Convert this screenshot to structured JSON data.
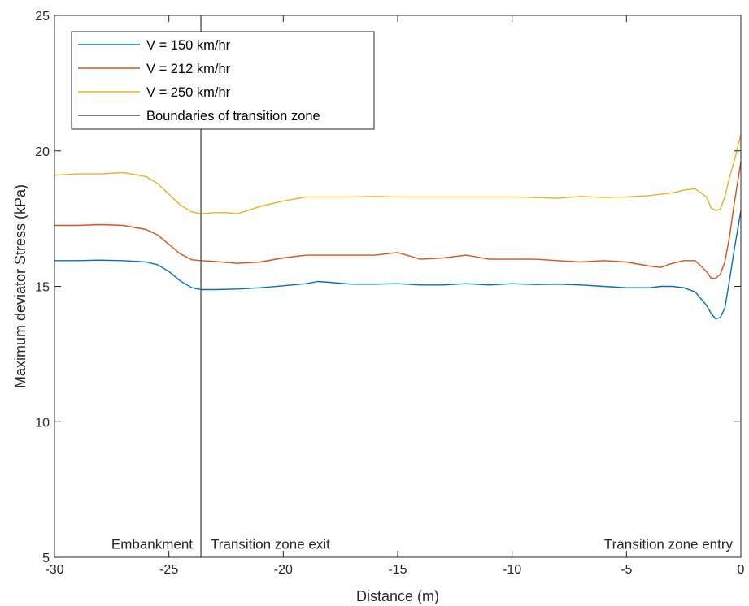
{
  "chart_data": {
    "type": "line",
    "title": "",
    "xlabel": "Distance (m)",
    "ylabel": "Maximum deviator Stress (kPa)",
    "xlim": [
      -30,
      0
    ],
    "ylim": [
      5,
      25
    ],
    "xticks": [
      -30,
      -25,
      -20,
      -15,
      -10,
      -5,
      0
    ],
    "yticks": [
      5,
      10,
      15,
      20,
      25
    ],
    "grid": false,
    "legend_position": "top-left",
    "series": [
      {
        "name": "V = 150 km/hr",
        "color": "#0072BD",
        "x": [
          -30,
          -29,
          -28,
          -27,
          -26,
          -25.5,
          -25,
          -24.5,
          -24,
          -23.6,
          -23,
          -22,
          -21,
          -20,
          -19,
          -18.5,
          -18,
          -17,
          -16,
          -15,
          -14,
          -13,
          -12,
          -11,
          -10,
          -9,
          -8,
          -7,
          -6,
          -5,
          -4,
          -3.5,
          -3,
          -2.5,
          -2,
          -1.5,
          -1.3,
          -1.1,
          -0.9,
          -0.7,
          -0.5,
          -0.3,
          0
        ],
        "y": [
          15.95,
          15.95,
          15.97,
          15.95,
          15.9,
          15.8,
          15.55,
          15.2,
          14.95,
          14.88,
          14.88,
          14.9,
          14.95,
          15.02,
          15.1,
          15.18,
          15.15,
          15.08,
          15.08,
          15.1,
          15.05,
          15.05,
          15.1,
          15.05,
          15.1,
          15.07,
          15.08,
          15.05,
          15.0,
          14.95,
          14.95,
          15.0,
          15.0,
          14.95,
          14.8,
          14.3,
          14.0,
          13.8,
          13.85,
          14.2,
          15.2,
          16.3,
          17.8
        ]
      },
      {
        "name": "V = 212 km/hr",
        "color": "#D95319",
        "x": [
          -30,
          -29,
          -28,
          -27,
          -26,
          -25.5,
          -25,
          -24.5,
          -24,
          -23.6,
          -23,
          -22,
          -21,
          -20,
          -19,
          -18,
          -17,
          -16,
          -15,
          -14,
          -13,
          -12,
          -11,
          -10,
          -9,
          -8,
          -7,
          -6,
          -5,
          -4,
          -3.5,
          -3,
          -2.5,
          -2,
          -1.5,
          -1.3,
          -1.1,
          -0.9,
          -0.7,
          -0.5,
          -0.3,
          0
        ],
        "y": [
          17.25,
          17.25,
          17.28,
          17.25,
          17.1,
          16.9,
          16.55,
          16.2,
          15.98,
          15.95,
          15.92,
          15.85,
          15.9,
          16.05,
          16.15,
          16.15,
          16.15,
          16.15,
          16.25,
          16.0,
          16.05,
          16.15,
          16.0,
          16.0,
          16.0,
          15.95,
          15.9,
          15.95,
          15.9,
          15.75,
          15.7,
          15.85,
          15.95,
          15.95,
          15.55,
          15.3,
          15.3,
          15.45,
          15.9,
          16.8,
          18.0,
          19.6
        ]
      },
      {
        "name": "V = 250 km/hr",
        "color": "#EDB120",
        "x": [
          -30,
          -29,
          -28,
          -27,
          -26,
          -25.5,
          -25,
          -24.5,
          -24,
          -23.6,
          -23,
          -22.5,
          -22,
          -21,
          -20,
          -19,
          -18,
          -17,
          -16,
          -15,
          -14,
          -13,
          -12,
          -11,
          -10,
          -9,
          -8,
          -7,
          -6,
          -5,
          -4,
          -3.5,
          -3,
          -2.5,
          -2,
          -1.5,
          -1.3,
          -1.1,
          -0.9,
          -0.7,
          -0.5,
          -0.3,
          0
        ],
        "y": [
          19.1,
          19.15,
          19.15,
          19.2,
          19.05,
          18.8,
          18.4,
          18.0,
          17.75,
          17.68,
          17.72,
          17.72,
          17.68,
          17.95,
          18.15,
          18.3,
          18.3,
          18.3,
          18.32,
          18.3,
          18.3,
          18.3,
          18.3,
          18.3,
          18.3,
          18.28,
          18.25,
          18.32,
          18.28,
          18.3,
          18.35,
          18.4,
          18.45,
          18.55,
          18.6,
          18.3,
          17.9,
          17.8,
          17.85,
          18.3,
          19.0,
          19.6,
          20.6
        ]
      }
    ],
    "vertical_lines": [
      {
        "name": "Boundaries of transition zone",
        "x": -23.6,
        "color": "#555555"
      }
    ],
    "annotations": [
      {
        "text": "Embankment",
        "x": -23.6,
        "y": 5.5,
        "align": "right"
      },
      {
        "text": "Transition zone exit",
        "x": -23.6,
        "y": 5.5,
        "align": "left"
      },
      {
        "text": "Transition zone entry",
        "x": 0,
        "y": 5.5,
        "align": "right"
      }
    ]
  }
}
